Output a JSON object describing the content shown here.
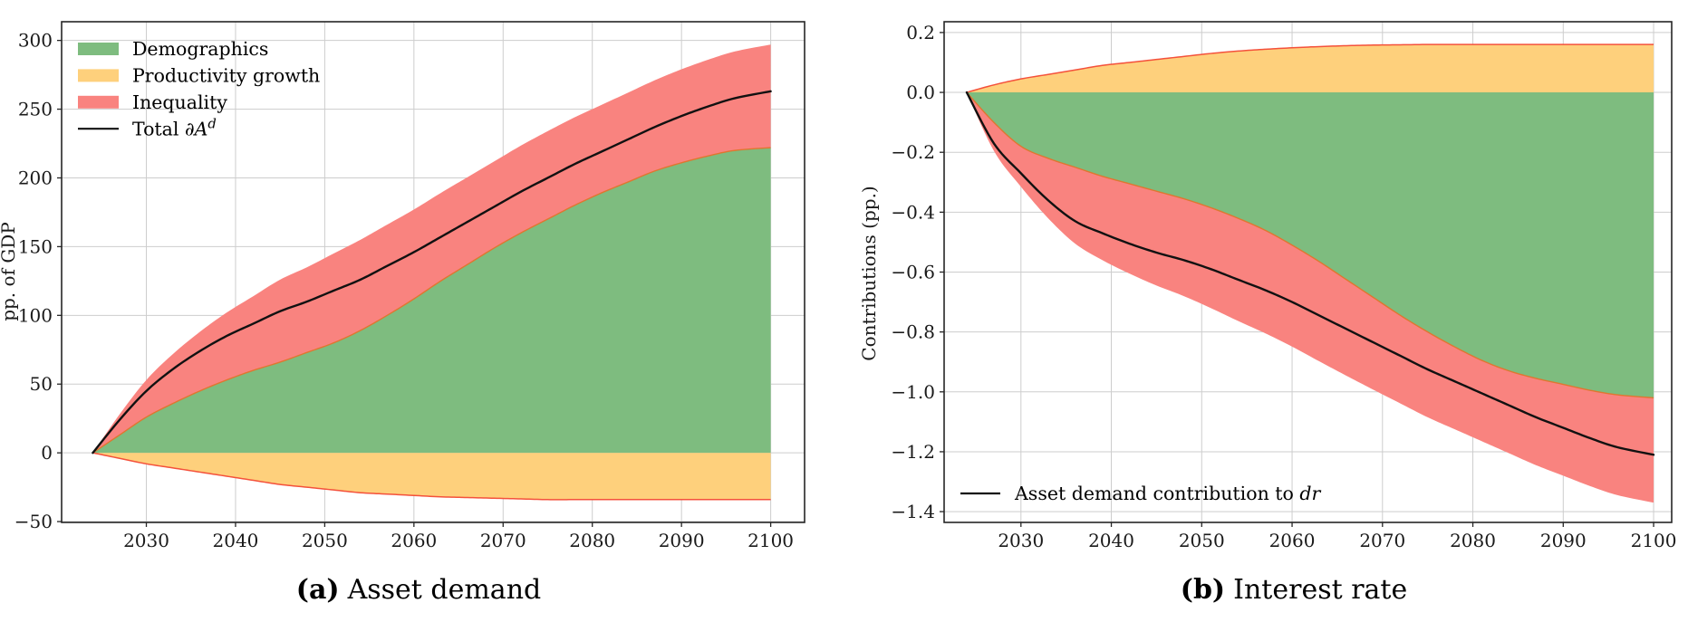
{
  "figure": {
    "description": "Two-panel stacked-area decomposition figure",
    "background": "#ffffff"
  },
  "captions": {
    "a": {
      "label": "(a)",
      "text": "Asset demand"
    },
    "b": {
      "label": "(b)",
      "text": "Interest rate"
    }
  },
  "colors": {
    "demographics_fill": "#7ebc7f",
    "productivity_fill": "#fed07c",
    "inequality_fill": "#f9837f",
    "productivity_edge": "#f4513b",
    "interface_edge": "#e0762f",
    "total_line": "#111111",
    "grid": "#cdcdcd",
    "spine": "#262626",
    "text": "#1a1a1a"
  },
  "chart_data": [
    {
      "type": "area",
      "panel": "a",
      "caption": "(a) Asset demand",
      "xlabel": "",
      "ylabel": "pp. of GDP",
      "grid": true,
      "legend_position": "upper left",
      "xlim": [
        2020.5,
        2103.8
      ],
      "ylim": [
        -50.6,
        313.6
      ],
      "xticks": [
        2030,
        2040,
        2050,
        2060,
        2070,
        2080,
        2090,
        2100
      ],
      "xtick_labels": [
        "2030",
        "2040",
        "2050",
        "2060",
        "2070",
        "2080",
        "2090",
        "2100"
      ],
      "yticks": [
        -50,
        0,
        50,
        100,
        150,
        200,
        250,
        300
      ],
      "ytick_labels": [
        "−50",
        "0",
        "50",
        "100",
        "150",
        "200",
        "250",
        "300"
      ],
      "x": [
        2024,
        2027,
        2030,
        2033,
        2036,
        2039,
        2042,
        2045,
        2048,
        2051,
        2054,
        2057,
        2060,
        2063,
        2066,
        2069,
        2072,
        2075,
        2078,
        2081,
        2084,
        2087,
        2090,
        2093,
        2096,
        2100
      ],
      "series": [
        {
          "name": "Demographics",
          "role": "area_from_zero",
          "color": "#7ebc7f",
          "values": [
            0,
            13,
            26,
            36,
            45,
            53,
            60,
            66,
            73,
            80,
            89,
            100,
            112,
            125,
            137,
            149,
            160,
            170,
            180,
            189,
            197,
            205,
            211,
            216,
            220,
            222
          ]
        },
        {
          "name": "Productivity growth",
          "role": "area_from_zero",
          "color": "#fed07c",
          "edge": "#f4513b",
          "values": [
            0,
            -4,
            -8,
            -11,
            -14,
            -17,
            -20,
            -23,
            -25,
            -27,
            -29,
            -30,
            -31,
            -32,
            -32.5,
            -33,
            -33.5,
            -34,
            -34,
            -34,
            -34,
            -34,
            -34,
            -34,
            -34,
            -34
          ]
        },
        {
          "name": "Inequality",
          "role": "area_stacked_on_first",
          "color": "#f9837f",
          "edge": "#e0762f",
          "values": [
            0,
            15,
            27,
            36,
            43,
            49,
            54,
            60,
            62,
            65,
            66,
            66,
            65,
            64,
            63.5,
            63,
            63.5,
            64,
            64,
            64,
            65,
            66,
            68,
            70,
            72,
            75
          ]
        },
        {
          "name": "Total ∂A^d",
          "role": "line",
          "color": "#111111",
          "values": [
            0,
            24,
            45,
            61,
            74,
            85,
            94,
            103,
            110,
            118,
            126,
            136,
            146,
            157,
            168,
            179,
            190,
            200,
            210,
            219,
            228,
            237,
            245,
            252,
            258,
            263
          ]
        }
      ],
      "legend": [
        {
          "type": "patch",
          "color": "#7ebc7f",
          "label_parts": {
            "pre": "Demographics"
          }
        },
        {
          "type": "patch",
          "color": "#fed07c",
          "label_parts": {
            "pre": "Productivity growth"
          }
        },
        {
          "type": "patch",
          "color": "#f9837f",
          "label_parts": {
            "pre": "Inequality"
          }
        },
        {
          "type": "line",
          "color": "#111111",
          "label_parts": {
            "pre": "Total ∂",
            "ital": "A",
            "sup": "d"
          }
        }
      ]
    },
    {
      "type": "area",
      "panel": "b",
      "caption": "(b) Interest rate",
      "xlabel": "",
      "ylabel": "Contributions (pp.)",
      "grid": true,
      "legend_position": "lower left",
      "xlim": [
        2021.5,
        2102.0
      ],
      "ylim": [
        -1.436,
        0.236
      ],
      "xticks": [
        2030,
        2040,
        2050,
        2060,
        2070,
        2080,
        2090,
        2100
      ],
      "xtick_labels": [
        "2030",
        "2040",
        "2050",
        "2060",
        "2070",
        "2080",
        "2090",
        "2100"
      ],
      "yticks": [
        -1.4,
        -1.2,
        -1.0,
        -0.8,
        -0.6,
        -0.4,
        -0.2,
        0.0,
        0.2
      ],
      "ytick_labels": [
        "−1.4",
        "−1.2",
        "−1.0",
        "−0.8",
        "−0.6",
        "−0.4",
        "−0.2",
        "0.0",
        "0.2"
      ],
      "x": [
        2024,
        2027,
        2030,
        2033,
        2036,
        2039,
        2042,
        2045,
        2048,
        2051,
        2054,
        2057,
        2060,
        2063,
        2066,
        2069,
        2072,
        2075,
        2078,
        2081,
        2084,
        2087,
        2090,
        2093,
        2096,
        2100
      ],
      "series": [
        {
          "name": "Demographics",
          "role": "area_from_zero",
          "color": "#7ebc7f",
          "values": [
            0,
            -0.1,
            -0.18,
            -0.22,
            -0.25,
            -0.28,
            -0.305,
            -0.33,
            -0.355,
            -0.385,
            -0.42,
            -0.46,
            -0.51,
            -0.565,
            -0.625,
            -0.685,
            -0.745,
            -0.8,
            -0.85,
            -0.895,
            -0.93,
            -0.955,
            -0.975,
            -0.995,
            -1.01,
            -1.02
          ]
        },
        {
          "name": "Productivity growth",
          "role": "area_from_zero",
          "color": "#fed07c",
          "edge": "#f4513b",
          "values": [
            0,
            0.025,
            0.045,
            0.06,
            0.075,
            0.09,
            0.1,
            0.11,
            0.12,
            0.13,
            0.138,
            0.144,
            0.149,
            0.153,
            0.156,
            0.158,
            0.159,
            0.16,
            0.16,
            0.16,
            0.16,
            0.16,
            0.16,
            0.16,
            0.16,
            0.16
          ]
        },
        {
          "name": "Inequality",
          "role": "area_stacked_on_first",
          "color": "#f9837f",
          "edge": "#e0762f",
          "values": [
            0,
            -0.095,
            -0.135,
            -0.2,
            -0.255,
            -0.28,
            -0.3,
            -0.315,
            -0.325,
            -0.335,
            -0.343,
            -0.344,
            -0.339,
            -0.333,
            -0.321,
            -0.308,
            -0.294,
            -0.285,
            -0.275,
            -0.27,
            -0.275,
            -0.29,
            -0.305,
            -0.32,
            -0.335,
            -0.35
          ]
        },
        {
          "name": "Asset demand contribution to dr",
          "role": "line",
          "color": "#111111",
          "values": [
            0,
            -0.17,
            -0.27,
            -0.36,
            -0.43,
            -0.47,
            -0.505,
            -0.535,
            -0.56,
            -0.59,
            -0.625,
            -0.66,
            -0.7,
            -0.745,
            -0.79,
            -0.835,
            -0.88,
            -0.925,
            -0.965,
            -1.005,
            -1.045,
            -1.085,
            -1.12,
            -1.155,
            -1.185,
            -1.21
          ]
        }
      ],
      "legend": [
        {
          "type": "line",
          "color": "#111111",
          "label_parts": {
            "pre": "Asset demand contribution to ",
            "ital": "dr"
          }
        }
      ]
    }
  ]
}
